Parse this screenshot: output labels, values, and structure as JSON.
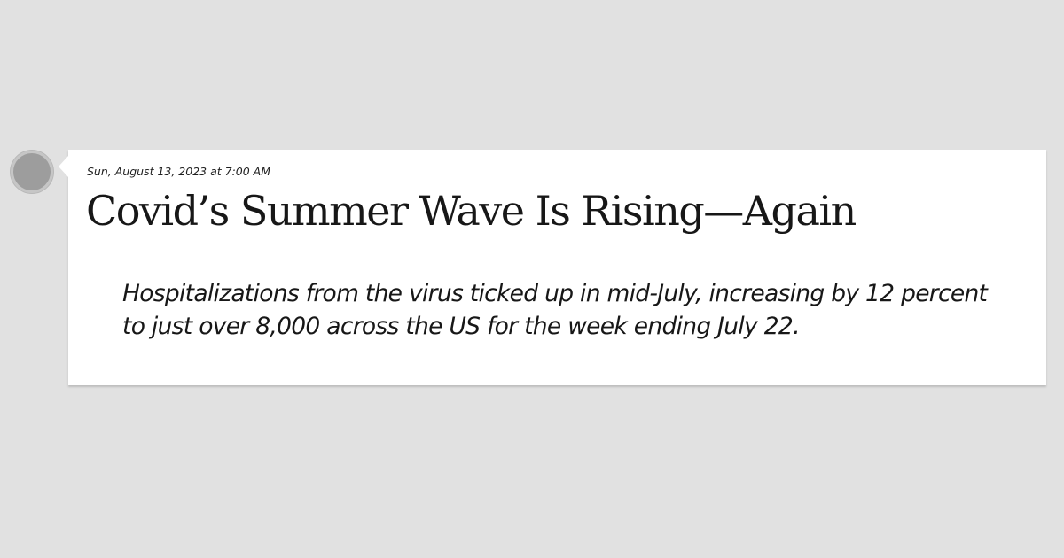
{
  "post": {
    "timestamp": "Sun, August 13, 2023 at 7:00 AM",
    "headline": "Covid’s Summer Wave Is Rising—Again",
    "dek": "Hospitalizations from the virus ticked up in mid-July, increasing by 12 percent to just over 8,000 across the US for the week ending July 22."
  },
  "colors": {
    "background": "#e1e1e1",
    "card": "#ffffff",
    "avatar": "#9d9d9d",
    "text": "#171717"
  },
  "icons": {
    "avatar": "avatar-placeholder-icon"
  }
}
